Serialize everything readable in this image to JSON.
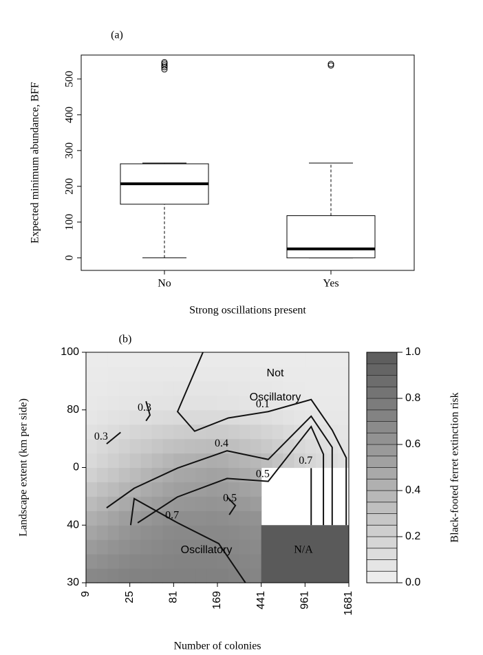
{
  "chart_data": [
    {
      "type": "box",
      "title": "(a)",
      "y_label": "Expected minimum abundance, BFF",
      "x_label": "Strong oscillations present",
      "categories": [
        "No",
        "Yes"
      ],
      "boxes": [
        {
          "min": 0,
          "q1": 150,
          "median": 207,
          "q3": 263,
          "max": 265,
          "outliers": [
            527,
            533,
            538,
            543,
            547
          ]
        },
        {
          "min": 0,
          "q1": 0,
          "median": 25,
          "q3": 118,
          "max": 265,
          "outliers": [
            538,
            542
          ]
        }
      ],
      "ylim": [
        -35,
        567
      ],
      "yticks": [
        0,
        100,
        200,
        300,
        400,
        500
      ]
    },
    {
      "type": "contour",
      "title": "(b)",
      "x_label": "Number of colonies",
      "y_label": "Landscape extent (km per side)",
      "x_categories": [
        "9",
        "25",
        "81",
        "169",
        "441",
        "961",
        "1681"
      ],
      "y_categories": [
        "30",
        "40",
        "0",
        "80",
        "100"
      ],
      "z": [
        [
          0.72,
          0.75,
          0.75,
          0.75,
          0.72,
          null,
          null
        ],
        [
          0.45,
          0.6,
          0.68,
          0.68,
          0.65,
          null,
          null
        ],
        [
          0.15,
          0.3,
          0.45,
          0.5,
          0.4,
          0.2,
          0.1
        ],
        [
          0.05,
          0.08,
          0.1,
          0.1,
          0.08,
          0.05,
          0.05
        ],
        [
          0.03,
          0.03,
          0.03,
          0.03,
          0.03,
          0.03,
          0.03
        ]
      ],
      "contours": [
        {
          "level": 0.1,
          "x": [
            2.67,
            2.09,
            2.48,
            3.25,
            4.16,
            5.14,
            5.62,
            5.94,
            5.94
          ],
          "y": [
            4,
            2.97,
            2.63,
            2.86,
            2.97,
            3.18,
            2.65,
            2.17,
            1
          ]
        },
        {
          "level": 0.3,
          "x": [
            0.47,
            0.79
          ],
          "y": [
            2.41,
            2.61
          ]
        },
        {
          "level": 0.3,
          "x": [
            1.37,
            1.46,
            1.37
          ],
          "y": [
            3.15,
            2.91,
            2.81
          ]
        },
        {
          "level": 0.4,
          "x": [
            0.47,
            1.1,
            2.09,
            3.22,
            4.16,
            5.14,
            5.62,
            5.62
          ],
          "y": [
            1.3,
            1.64,
            1.99,
            2.29,
            2.14,
            2.89,
            2.35,
            1
          ]
        },
        {
          "level": 0.5,
          "x": [
            1.18,
            2.09,
            3.22,
            4.16,
            5.14,
            5.42,
            5.42
          ],
          "y": [
            1.04,
            1.49,
            1.81,
            1.76,
            2.71,
            2.23,
            1
          ]
        },
        {
          "level": 0.7,
          "x": [
            5.14,
            5.14
          ],
          "y": [
            1.99,
            1
          ]
        },
        {
          "level": 0.5,
          "x": [
            3.22,
            3.41,
            3.27
          ],
          "y": [
            1.49,
            1.34,
            1.18
          ]
        },
        {
          "level": 0.7,
          "x": [
            1.02,
            1.1,
            2.09,
            3.03,
            3.64
          ],
          "y": [
            1,
            1.46,
            1.04,
            0.68,
            0
          ]
        }
      ],
      "annotations": [
        "Not",
        "Oscillatory",
        "Oscillatory",
        "N/A"
      ],
      "colorbar_label": "Black-footed ferret extinction risk",
      "zlim": [
        0,
        1
      ],
      "zticks": [
        {
          "value": 0,
          "label": "0.0"
        },
        0.2,
        0.4,
        0.6,
        0.8,
        {
          "value": 1,
          "label": "1.0"
        }
      ]
    }
  ]
}
